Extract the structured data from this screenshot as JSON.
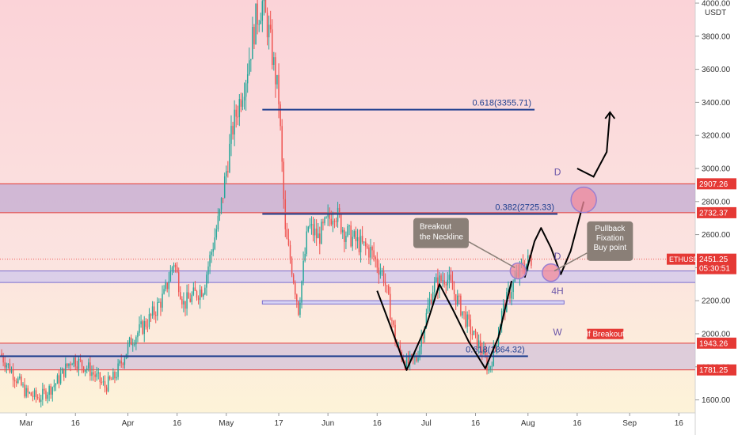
{
  "chart_data": {
    "type": "candlestick",
    "symbol": "ETHUSDT",
    "currency": "USDT",
    "y_range": [
      1550,
      4000
    ],
    "y_ticks": [
      {
        "value": 4000,
        "label": "4000.00"
      },
      {
        "value": 3800,
        "label": "3800.00"
      },
      {
        "value": 3600,
        "label": "3600.00"
      },
      {
        "value": 3400,
        "label": "3400.00"
      },
      {
        "value": 3200,
        "label": "3200.00"
      },
      {
        "value": 3000,
        "label": "3000.00"
      },
      {
        "value": 2800,
        "label": "2800.00"
      },
      {
        "value": 2600,
        "label": "2600.00"
      },
      {
        "value": 2400,
        "label": "2400.00"
      },
      {
        "value": 2200,
        "label": "2200.00"
      },
      {
        "value": 2000,
        "label": "2000.00"
      },
      {
        "value": 1800,
        "label": "1800.00"
      },
      {
        "value": 1600,
        "label": "1600.00"
      }
    ],
    "x_range": [
      "2021-02-21",
      "2021-09-21"
    ],
    "x_ticks": [
      {
        "date": "2021-03-01",
        "label": "Mar"
      },
      {
        "date": "2021-03-16",
        "label": "16"
      },
      {
        "date": "2021-04-01",
        "label": "Apr"
      },
      {
        "date": "2021-04-16",
        "label": "16"
      },
      {
        "date": "2021-05-01",
        "label": "May"
      },
      {
        "date": "2021-05-17",
        "label": "17"
      },
      {
        "date": "2021-06-01",
        "label": "Jun"
      },
      {
        "date": "2021-06-16",
        "label": "16"
      },
      {
        "date": "2021-07-01",
        "label": "Jul"
      },
      {
        "date": "2021-07-16",
        "label": "16"
      },
      {
        "date": "2021-08-01",
        "label": "Aug"
      },
      {
        "date": "2021-08-16",
        "label": "16"
      },
      {
        "date": "2021-09-01",
        "label": "Sep"
      },
      {
        "date": "2021-09-16",
        "label": "16"
      }
    ],
    "path_points": [
      [
        "2021-02-21",
        1880
      ],
      [
        "2021-02-25",
        1760
      ],
      [
        "2021-03-01",
        1640
      ],
      [
        "2021-03-05",
        1610
      ],
      [
        "2021-03-10",
        1700
      ],
      [
        "2021-03-15",
        1850
      ],
      [
        "2021-03-20",
        1790
      ],
      [
        "2021-03-25",
        1680
      ],
      [
        "2021-03-28",
        1740
      ],
      [
        "2021-04-02",
        1960
      ],
      [
        "2021-04-08",
        2100
      ],
      [
        "2021-04-12",
        2230
      ],
      [
        "2021-04-15",
        2440
      ],
      [
        "2021-04-18",
        2180
      ],
      [
        "2021-04-24",
        2280
      ],
      [
        "2021-04-29",
        2720
      ],
      [
        "2021-05-03",
        3250
      ],
      [
        "2021-05-07",
        3560
      ],
      [
        "2021-05-10",
        3900
      ],
      [
        "2021-05-12",
        4000
      ],
      [
        "2021-05-14",
        3820
      ],
      [
        "2021-05-17",
        3420
      ],
      [
        "2021-05-19",
        2600
      ],
      [
        "2021-05-21",
        2400
      ],
      [
        "2021-05-23",
        2150
      ],
      [
        "2021-05-26",
        2650
      ],
      [
        "2021-05-29",
        2580
      ],
      [
        "2021-06-03",
        2750
      ],
      [
        "2021-06-06",
        2620
      ],
      [
        "2021-06-10",
        2550
      ],
      [
        "2021-06-14",
        2500
      ],
      [
        "2021-06-18",
        2350
      ],
      [
        "2021-06-22",
        1920
      ],
      [
        "2021-06-25",
        1820
      ],
      [
        "2021-06-28",
        1850
      ],
      [
        "2021-07-03",
        2280
      ],
      [
        "2021-07-07",
        2350
      ],
      [
        "2021-07-11",
        2180
      ],
      [
        "2021-07-15",
        2000
      ],
      [
        "2021-07-18",
        1900
      ],
      [
        "2021-07-20",
        1780
      ],
      [
        "2021-07-22",
        1920
      ],
      [
        "2021-07-24",
        2120
      ],
      [
        "2021-07-27",
        2280
      ],
      [
        "2021-07-30",
        2400
      ],
      [
        "2021-08-02",
        2451
      ]
    ],
    "current_price": {
      "value": 2451.25,
      "symbol_label": "ETHUSDT",
      "price_label": "2451.25",
      "countdown": "05:30:51"
    },
    "zones": [
      {
        "top": 2907.26,
        "bottom": 2732.37,
        "top_label": "2907.26",
        "bottom_label": "2732.37",
        "from": "2021-02-21",
        "to": "2021-09-21",
        "color": "#b59fcf"
      },
      {
        "top": 2380,
        "bottom": 2310,
        "from": "2021-02-21",
        "to": "2021-09-21",
        "color": "#c7bff0"
      },
      {
        "top": 1943.26,
        "bottom": 1781.25,
        "top_label": "1943.26",
        "bottom_label": "1781.25",
        "from": "2021-02-21",
        "to": "2021-09-21",
        "color": "#c9b8d8"
      }
    ],
    "fib_lines": [
      {
        "value": 3355.71,
        "label": "0.618(3355.71)",
        "from": "2021-05-12",
        "to": "2021-08-03"
      },
      {
        "value": 2725,
        "label": "0.382(2725.33)",
        "from": "2021-05-12",
        "to": "2021-08-10"
      },
      {
        "value": 1864.32,
        "label": "0.618(1864.32)",
        "from": "2021-02-21",
        "to": "2021-08-01"
      }
    ],
    "annotations": {
      "breakout_callout": [
        "Breakout",
        "the Neckline"
      ],
      "pullback_callout": [
        "Pullback",
        "Fixation",
        "Buy point"
      ],
      "if_breakout": "If Breakout",
      "d_upper": "D",
      "d_mid": "D",
      "h4": "4H",
      "w": "W"
    },
    "colors": {
      "up": "#26a69a",
      "down": "#ef5350",
      "fib": "#1f3f8f",
      "zone_line": "#e53935",
      "tag": "#e53935"
    }
  }
}
